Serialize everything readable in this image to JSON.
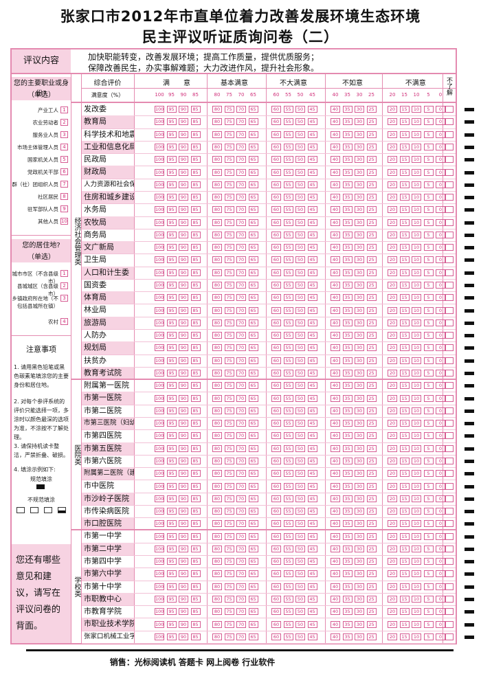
{
  "header": {
    "title_lines": [
      "张家口市2012年市直单位着力改善发展环境生态环境",
      "民主评议听证质询问卷（二）"
    ]
  },
  "intro": {
    "label": "评议内容",
    "lines": [
      "加快职能转变，改善发展环境；提高工作质量，提供优质服务；",
      "保障改善民生，办实事解难题；大力改进作风，提升社会形象。"
    ]
  },
  "identity": {
    "question": "您的主要职业或身份?",
    "hint": "（单选）",
    "options": [
      {
        "label": "产业工人",
        "code": 1
      },
      {
        "label": "农业劳动者",
        "code": 2
      },
      {
        "label": "服务业人员",
        "code": 3
      },
      {
        "label": "市场主体管理人员",
        "code": 4
      },
      {
        "label": "国家机关人员",
        "code": 5
      },
      {
        "label": "党政机关干部",
        "code": 6
      },
      {
        "label": "群（社）团组织人员",
        "code": 7
      },
      {
        "label": "社区居民",
        "code": 8
      },
      {
        "label": "驻军部队人员",
        "code": 9
      },
      {
        "label": "其他人员",
        "code": 10
      }
    ]
  },
  "residence": {
    "question": "您的居住地?",
    "hint": "（单选）",
    "options": [
      {
        "label": "城市市区（不含县级市）",
        "code": 1
      },
      {
        "label": "县城城区（含县级市）",
        "code": 2
      },
      {
        "label": "乡镇政府所在地（不包括县城所在镇）",
        "code": 3
      },
      {
        "label": "农村",
        "code": 4
      }
    ]
  },
  "notes": {
    "title": "注意事项",
    "items": [
      "1. 请用黑色铅笔或黑色碳素笔填涂您的主要身份和居住地。",
      "2. 对每个参评系统的评价只能选择一项，多涂时以颜色最深的选项为准，不涂按不了解处理。",
      "3. 请保持机读卡整洁，严禁折叠、破损。",
      "4. 填涂示例如下:"
    ],
    "sample_good": "规范填涂",
    "sample_bad": "不规范填涂"
  },
  "suggestion": "您还有哪些意见和建议，请写在评议问卷的背面。",
  "table": {
    "col_header": "综合评价",
    "score_label": "满意度（%）",
    "unknown": "不了解",
    "grades": [
      {
        "label": "满　　意",
        "scores": [
          100,
          95,
          90,
          85
        ]
      },
      {
        "label": "基本满意",
        "scores": [
          80,
          75,
          70,
          65
        ]
      },
      {
        "label": "不大满意",
        "scores": [
          60,
          55,
          50,
          45
        ]
      },
      {
        "label": "不如意",
        "scores": [
          40,
          35,
          30,
          25
        ]
      },
      {
        "label": "不满意",
        "scores": [
          20,
          15,
          10,
          5,
          0
        ]
      }
    ]
  },
  "sections": [
    {
      "label": "经济社会管理类",
      "rows": [
        "发改委",
        "教育局",
        "科学技术和地震局",
        "工业和信息化局",
        "民政局",
        "财政局",
        "人力资源和社会保障局",
        "住房和城乡建设局",
        "水务局",
        "农牧局",
        "商务局",
        "文广新局",
        "卫生局",
        "人口和计生委",
        "国资委",
        "体育局",
        "林业局",
        "旅游局",
        "人防办",
        "规划局",
        "扶贫办",
        "教育考试院"
      ]
    },
    {
      "label": "医院类",
      "rows": [
        "附属第一医院",
        "市第一医院",
        "市第二医院",
        "市第三医院（妇幼保健院）",
        "市第四医院",
        "市第五医院",
        "市第六医院",
        "附属第二医院（建国医院）",
        "市中医院",
        "市沙岭子医院",
        "市传染病医院",
        "市口腔医院"
      ]
    },
    {
      "label": "学校类",
      "rows": [
        "市第一中学",
        "市第二中学",
        "市第四中学",
        "市第六中学",
        "市第十中学",
        "市职教中心",
        "市教育学院",
        "市职业技术学院",
        "张家口机械工业学校"
      ]
    }
  ],
  "footer": "销售：光标阅读机 答题卡 网上阅卷 行业软件"
}
